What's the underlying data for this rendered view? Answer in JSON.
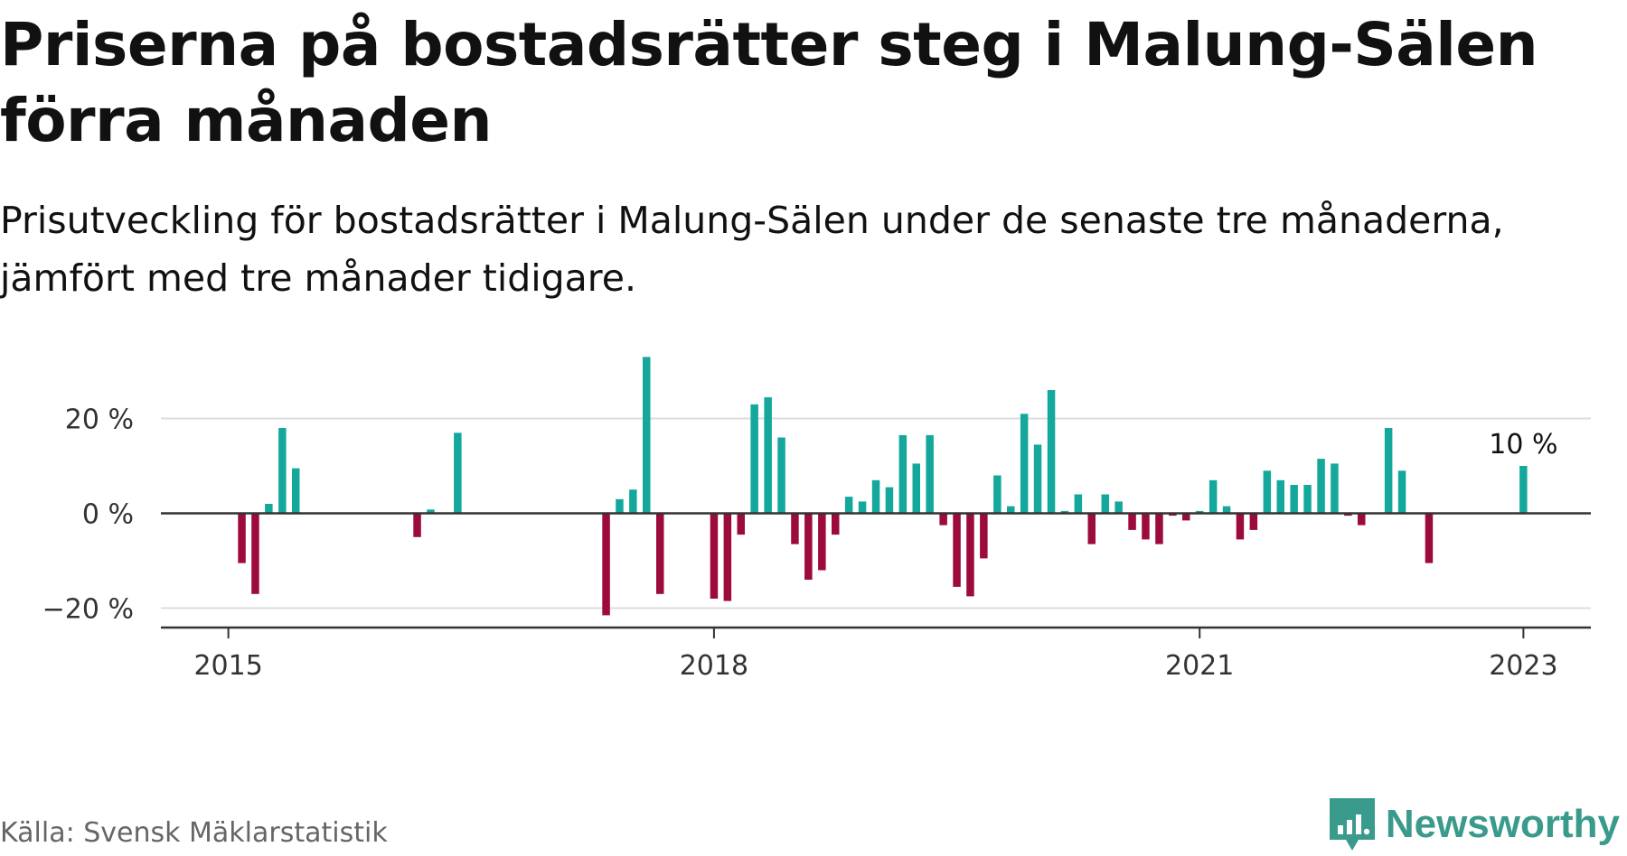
{
  "header": {
    "title": "Priserna på bostadsrätter steg i Malung-Sälen förra månaden",
    "subtitle": "Prisutveckling för bostadsrätter i Malung-Sälen under de senaste tre månaderna, jämfört med tre månader tidigare."
  },
  "footer": {
    "source": "Källa: Svensk Mäklarstatistik",
    "brand": "Newsworthy",
    "brand_icon": "bar-chart-speech-bubble-icon"
  },
  "colors": {
    "positive": "#14a89d",
    "negative": "#9c0a3e",
    "grid": "#dddddd",
    "axis": "#333333",
    "brand": "#3a9a8c"
  },
  "chart_data": {
    "type": "bar",
    "unit": "%",
    "xlabel": "",
    "ylabel": "",
    "ylim": [
      -26,
      34
    ],
    "yticks": [
      {
        "value": -20,
        "label": "−20 %"
      },
      {
        "value": 0,
        "label": "0 %"
      },
      {
        "value": 20,
        "label": "20 %"
      }
    ],
    "xticks": [
      {
        "date": "2015-01",
        "label": "2015"
      },
      {
        "date": "2018-01",
        "label": "2018"
      },
      {
        "date": "2021-01",
        "label": "2021"
      },
      {
        "date": "2023-01",
        "label": "2023"
      }
    ],
    "x_range": [
      "2014-08",
      "2023-06"
    ],
    "grid": true,
    "annotation": {
      "date": "2023-01",
      "label": "10 %"
    },
    "series": [
      {
        "values": [
          {
            "date": "2015-02",
            "value": -10.5
          },
          {
            "date": "2015-03",
            "value": -17
          },
          {
            "date": "2015-04",
            "value": 2
          },
          {
            "date": "2015-05",
            "value": 18
          },
          {
            "date": "2015-06",
            "value": 9.5
          },
          {
            "date": "2016-03",
            "value": -5
          },
          {
            "date": "2016-04",
            "value": 0.8
          },
          {
            "date": "2016-06",
            "value": 17
          },
          {
            "date": "2017-05",
            "value": -21.5
          },
          {
            "date": "2017-06",
            "value": 3
          },
          {
            "date": "2017-07",
            "value": 5
          },
          {
            "date": "2017-08",
            "value": 33
          },
          {
            "date": "2017-09",
            "value": -17
          },
          {
            "date": "2018-01",
            "value": -18
          },
          {
            "date": "2018-02",
            "value": -18.5
          },
          {
            "date": "2018-03",
            "value": -4.5
          },
          {
            "date": "2018-04",
            "value": 23
          },
          {
            "date": "2018-05",
            "value": 24.5
          },
          {
            "date": "2018-06",
            "value": 16
          },
          {
            "date": "2018-07",
            "value": -6.5
          },
          {
            "date": "2018-08",
            "value": -14
          },
          {
            "date": "2018-09",
            "value": -12
          },
          {
            "date": "2018-10",
            "value": -4.5
          },
          {
            "date": "2018-11",
            "value": 3.5
          },
          {
            "date": "2018-12",
            "value": 2.5
          },
          {
            "date": "2019-01",
            "value": 7
          },
          {
            "date": "2019-02",
            "value": 5.5
          },
          {
            "date": "2019-03",
            "value": 16.5
          },
          {
            "date": "2019-04",
            "value": 10.5
          },
          {
            "date": "2019-05",
            "value": 16.5
          },
          {
            "date": "2019-06",
            "value": -2.5
          },
          {
            "date": "2019-07",
            "value": -15.5
          },
          {
            "date": "2019-08",
            "value": -17.5
          },
          {
            "date": "2019-09",
            "value": -9.5
          },
          {
            "date": "2019-10",
            "value": 8
          },
          {
            "date": "2019-11",
            "value": 1.5
          },
          {
            "date": "2019-12",
            "value": 21
          },
          {
            "date": "2020-01",
            "value": 14.5
          },
          {
            "date": "2020-02",
            "value": 26
          },
          {
            "date": "2020-03",
            "value": 0.5
          },
          {
            "date": "2020-04",
            "value": 4
          },
          {
            "date": "2020-05",
            "value": -6.5
          },
          {
            "date": "2020-06",
            "value": 4
          },
          {
            "date": "2020-07",
            "value": 2.5
          },
          {
            "date": "2020-08",
            "value": -3.5
          },
          {
            "date": "2020-09",
            "value": -5.5
          },
          {
            "date": "2020-10",
            "value": -6.5
          },
          {
            "date": "2020-11",
            "value": -0.5
          },
          {
            "date": "2020-12",
            "value": -1.5
          },
          {
            "date": "2021-01",
            "value": 0.5
          },
          {
            "date": "2021-02",
            "value": 7
          },
          {
            "date": "2021-03",
            "value": 1.5
          },
          {
            "date": "2021-04",
            "value": -5.5
          },
          {
            "date": "2021-05",
            "value": -3.5
          },
          {
            "date": "2021-06",
            "value": 9
          },
          {
            "date": "2021-07",
            "value": 7
          },
          {
            "date": "2021-08",
            "value": 6
          },
          {
            "date": "2021-09",
            "value": 6
          },
          {
            "date": "2021-10",
            "value": 11.5
          },
          {
            "date": "2021-11",
            "value": 10.5
          },
          {
            "date": "2021-12",
            "value": -0.5
          },
          {
            "date": "2022-01",
            "value": -2.5
          },
          {
            "date": "2022-03",
            "value": 18
          },
          {
            "date": "2022-04",
            "value": 9
          },
          {
            "date": "2022-06",
            "value": -10.5
          },
          {
            "date": "2023-01",
            "value": 10
          }
        ]
      }
    ]
  }
}
